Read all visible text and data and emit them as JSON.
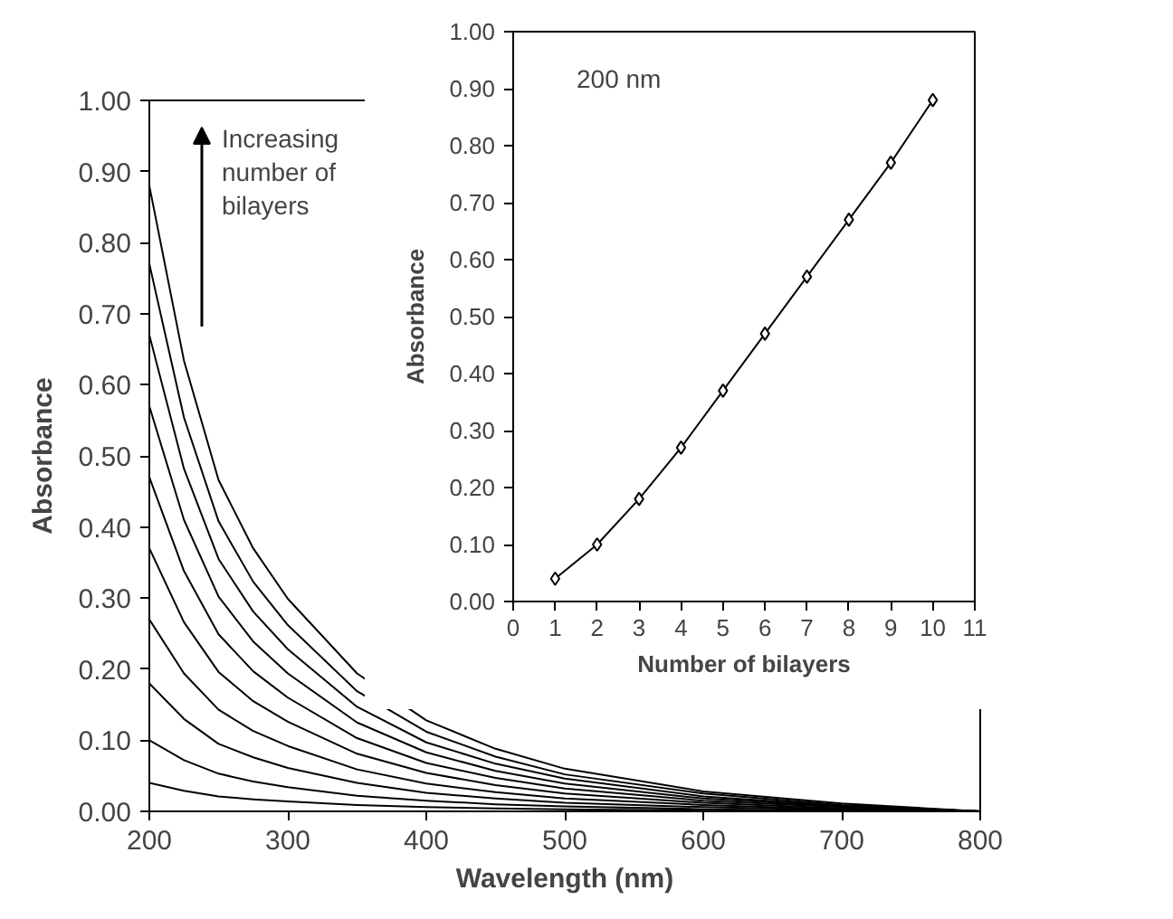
{
  "chart_data": [
    {
      "type": "line",
      "xlabel": "Wavelength (nm)",
      "ylabel": "Absorbance",
      "annotations": [
        "Increasing number of bilayers"
      ],
      "x": [
        200,
        225,
        250,
        275,
        300,
        350,
        400,
        450,
        500,
        600,
        700,
        800
      ],
      "xlim": [
        200,
        800
      ],
      "xticks": [
        200,
        300,
        400,
        500,
        600,
        700,
        800
      ],
      "ylim": [
        0,
        1
      ],
      "yticks": [
        {
          "value": 0,
          "label": "0.00"
        },
        {
          "value": 0.1,
          "label": "0.10"
        },
        {
          "value": 0.2,
          "label": "0.20"
        },
        {
          "value": 0.3,
          "label": "0.30"
        },
        {
          "value": 0.4,
          "label": "0.40"
        },
        {
          "value": 0.5,
          "label": "0.50"
        },
        {
          "value": 0.6,
          "label": "0.60"
        },
        {
          "value": 0.7,
          "label": "0.70"
        },
        {
          "value": 0.8,
          "label": "0.80"
        },
        {
          "value": 0.9,
          "label": "0.90"
        },
        {
          "value": 1,
          "label": "1.00"
        }
      ],
      "marker": "none",
      "line_style": "solid",
      "series": [
        {
          "color": "#000000",
          "values": [
            0.04,
            0.029,
            0.021,
            0.017,
            0.014,
            0.009,
            0.006,
            0.004,
            0.003,
            0.001,
            0.0,
            0
          ]
        },
        {
          "color": "#000000",
          "values": [
            0.1,
            0.072,
            0.053,
            0.042,
            0.034,
            0.022,
            0.015,
            0.01,
            0.007,
            0.003,
            0.001,
            0
          ]
        },
        {
          "color": "#000000",
          "values": [
            0.18,
            0.13,
            0.095,
            0.076,
            0.061,
            0.04,
            0.026,
            0.018,
            0.012,
            0.006,
            0.002,
            0
          ]
        },
        {
          "color": "#000000",
          "values": [
            0.27,
            0.194,
            0.143,
            0.113,
            0.092,
            0.059,
            0.039,
            0.027,
            0.018,
            0.009,
            0.003,
            0
          ]
        },
        {
          "color": "#000000",
          "values": [
            0.37,
            0.266,
            0.196,
            0.155,
            0.126,
            0.081,
            0.054,
            0.037,
            0.025,
            0.012,
            0.004,
            0
          ]
        },
        {
          "color": "#000000",
          "values": [
            0.47,
            0.338,
            0.249,
            0.197,
            0.16,
            0.103,
            0.068,
            0.047,
            0.032,
            0.015,
            0.006,
            0
          ]
        },
        {
          "color": "#000000",
          "values": [
            0.57,
            0.41,
            0.302,
            0.239,
            0.194,
            0.125,
            0.083,
            0.057,
            0.039,
            0.018,
            0.007,
            0
          ]
        },
        {
          "color": "#000000",
          "values": [
            0.67,
            0.482,
            0.355,
            0.281,
            0.228,
            0.147,
            0.097,
            0.067,
            0.046,
            0.021,
            0.008,
            0
          ]
        },
        {
          "color": "#000000",
          "values": [
            0.77,
            0.554,
            0.408,
            0.323,
            0.262,
            0.169,
            0.112,
            0.077,
            0.052,
            0.025,
            0.009,
            0
          ]
        },
        {
          "color": "#000000",
          "values": [
            0.88,
            0.634,
            0.466,
            0.37,
            0.299,
            0.194,
            0.128,
            0.088,
            0.06,
            0.028,
            0.011,
            0
          ]
        }
      ]
    },
    {
      "type": "line",
      "xlabel": "Number of bilayers",
      "ylabel": "Absorbance",
      "annotations": [
        "200 nm"
      ],
      "x": [
        1,
        2,
        3,
        4,
        5,
        6,
        7,
        8,
        9,
        10
      ],
      "xlim": [
        0,
        11
      ],
      "xticks": [
        0,
        1,
        2,
        3,
        4,
        5,
        6,
        7,
        8,
        9,
        10,
        11
      ],
      "ylim": [
        0,
        1
      ],
      "yticks": [
        {
          "value": 0,
          "label": "0.00"
        },
        {
          "value": 0.1,
          "label": "0.10"
        },
        {
          "value": 0.2,
          "label": "0.20"
        },
        {
          "value": 0.3,
          "label": "0.30"
        },
        {
          "value": 0.4,
          "label": "0.40"
        },
        {
          "value": 0.5,
          "label": "0.50"
        },
        {
          "value": 0.6,
          "label": "0.60"
        },
        {
          "value": 0.7,
          "label": "0.70"
        },
        {
          "value": 0.8,
          "label": "0.80"
        },
        {
          "value": 0.9,
          "label": "0.90"
        },
        {
          "value": 1,
          "label": "1.00"
        }
      ],
      "marker": "diamond",
      "line_style": "solid",
      "series": [
        {
          "color": "#000000",
          "values": [
            0.04,
            0.1,
            0.18,
            0.27,
            0.37,
            0.47,
            0.57,
            0.67,
            0.77,
            0.88
          ]
        }
      ]
    }
  ]
}
